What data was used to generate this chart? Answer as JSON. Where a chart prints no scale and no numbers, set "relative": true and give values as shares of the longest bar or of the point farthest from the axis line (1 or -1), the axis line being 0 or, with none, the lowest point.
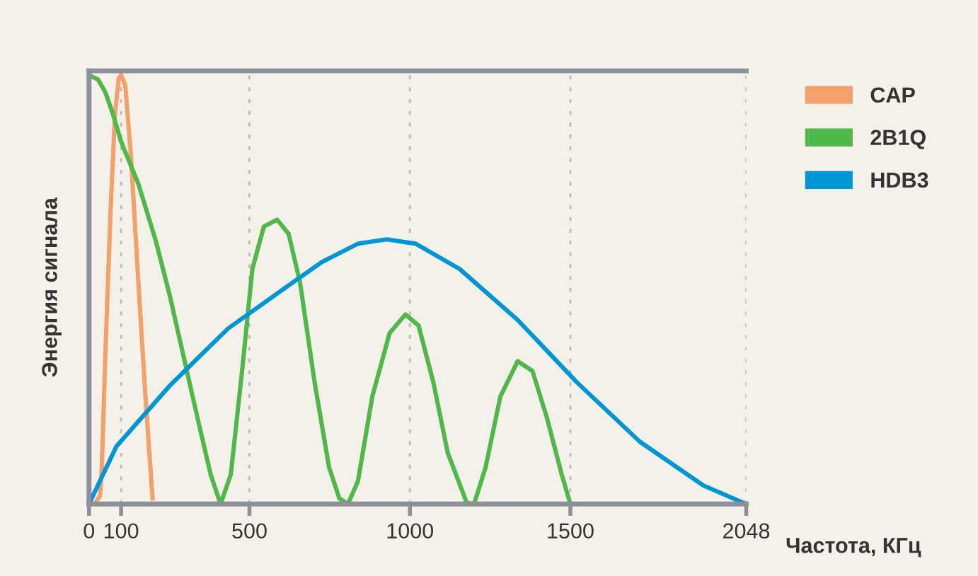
{
  "chart_data": {
    "type": "line",
    "relative": true,
    "xlabel": "Частота, КГц",
    "ylabel": "Энергия сигнала",
    "xlim": [
      0,
      2048
    ],
    "xticks": [
      0,
      100,
      500,
      1000,
      1500,
      2048
    ],
    "tick_labels": "x",
    "grid": "x",
    "legend": "top right",
    "marker": "none",
    "line_style": "solid",
    "series": [
      {
        "name": "CAP",
        "color": "#f4a06a",
        "x": [
          0,
          21,
          35,
          40,
          51,
          67,
          81,
          93,
          100,
          113,
          131,
          154,
          176,
          198
        ],
        "values": [
          0,
          0.003,
          0.02,
          0.086,
          0.35,
          0.68,
          0.91,
          0.993,
          1.0,
          0.977,
          0.81,
          0.515,
          0.25,
          0.013
        ]
      },
      {
        "name": "2B1Q",
        "color": "#50b848",
        "x": [
          0,
          28,
          51,
          74,
          100,
          154,
          208,
          253,
          298,
          343,
          379,
          410,
          442,
          478,
          509,
          545,
          586,
          622,
          658,
          703,
          748,
          780,
          807,
          838,
          883,
          937,
          986,
          1027,
          1073,
          1118,
          1177,
          1200,
          1236,
          1282,
          1336,
          1382,
          1427,
          1473,
          1500
        ],
        "values": [
          1.0,
          0.99,
          0.96,
          0.911,
          0.845,
          0.746,
          0.614,
          0.482,
          0.333,
          0.185,
          0.069,
          0,
          0.069,
          0.317,
          0.548,
          0.647,
          0.663,
          0.63,
          0.515,
          0.284,
          0.086,
          0.013,
          0,
          0.053,
          0.251,
          0.399,
          0.442,
          0.416,
          0.284,
          0.119,
          0.003,
          0,
          0.086,
          0.251,
          0.333,
          0.31,
          0.201,
          0.069,
          0
        ]
      },
      {
        "name": "HDB3",
        "color": "#0096d6",
        "x": [
          0,
          86,
          253,
          433,
          613,
          725,
          838,
          928,
          1018,
          1155,
          1336,
          1520,
          1717,
          1915,
          2048
        ],
        "values": [
          0,
          0.135,
          0.277,
          0.409,
          0.505,
          0.564,
          0.607,
          0.617,
          0.607,
          0.548,
          0.429,
          0.284,
          0.145,
          0.043,
          0
        ]
      }
    ]
  }
}
